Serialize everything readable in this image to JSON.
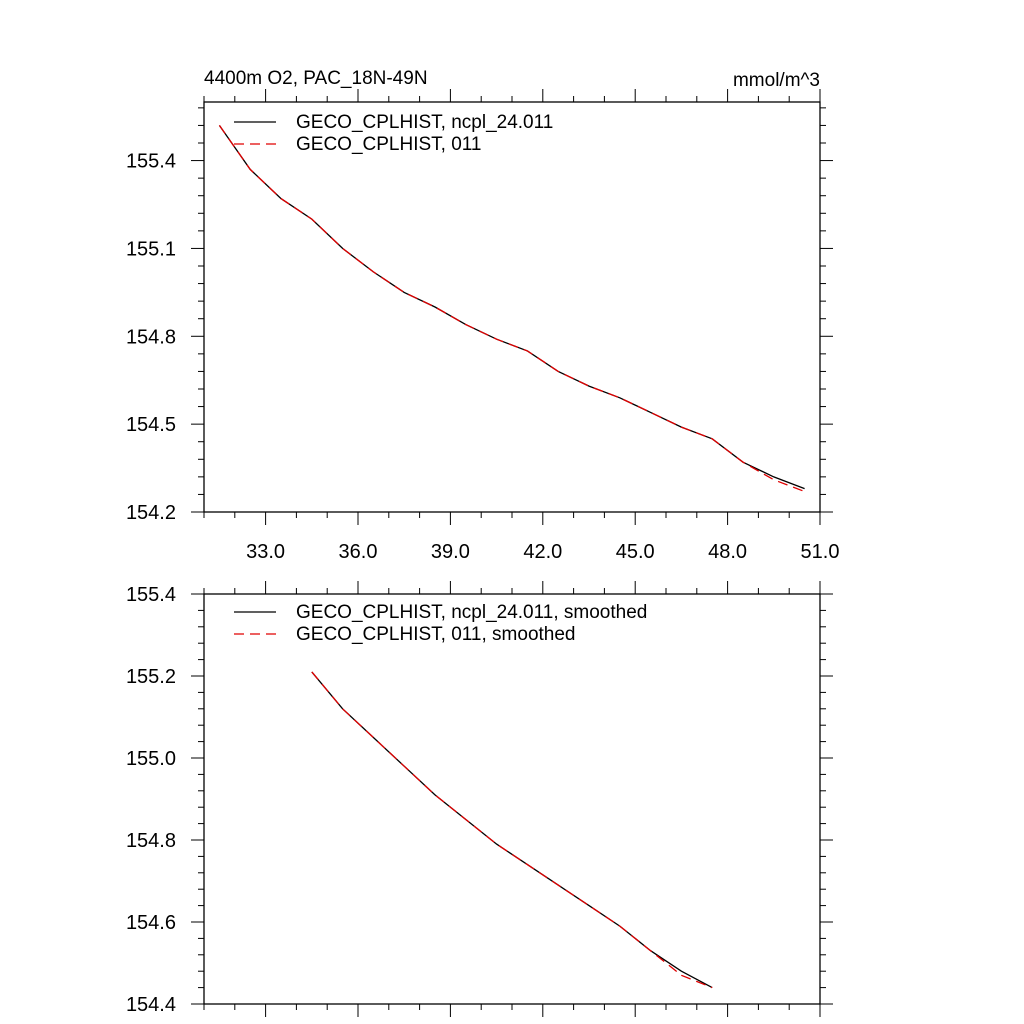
{
  "title_left": "4400m O2, PAC_18N-49N",
  "title_right": "mmol/m^3",
  "colors": {
    "series1": "#000000",
    "series2": "#e00000"
  },
  "chart_data": [
    {
      "type": "line",
      "xlim": [
        31.0,
        51.0
      ],
      "ylim": [
        154.2,
        155.6
      ],
      "xticks": [
        "33.0",
        "36.0",
        "39.0",
        "42.0",
        "45.0",
        "48.0",
        "51.0"
      ],
      "yticks": [
        "154.2",
        "154.5",
        "154.8",
        "155.1",
        "155.4"
      ],
      "series": [
        {
          "name": "GECO_CPLHIST, ncpl_24.011",
          "x": [
            31.5,
            32.5,
            33.5,
            34.5,
            35.5,
            36.5,
            37.5,
            38.5,
            39.5,
            40.5,
            41.5,
            42.5,
            43.5,
            44.5,
            45.5,
            46.5,
            47.5,
            48.5,
            49.5,
            50.5
          ],
          "y": [
            155.52,
            155.37,
            155.27,
            155.2,
            155.1,
            155.02,
            154.95,
            154.9,
            154.84,
            154.79,
            154.75,
            154.68,
            154.63,
            154.59,
            154.54,
            154.49,
            154.45,
            154.37,
            154.32,
            154.28
          ]
        },
        {
          "name": "GECO_CPLHIST, 011",
          "x": [
            31.5,
            32.5,
            33.5,
            34.5,
            35.5,
            36.5,
            37.5,
            38.5,
            39.5,
            40.5,
            41.5,
            42.5,
            43.5,
            44.5,
            45.5,
            46.5,
            47.5,
            48.5,
            49.5,
            50.5
          ],
          "y": [
            155.52,
            155.37,
            155.27,
            155.2,
            155.1,
            155.02,
            154.95,
            154.9,
            154.84,
            154.79,
            154.75,
            154.68,
            154.63,
            154.59,
            154.54,
            154.49,
            154.45,
            154.37,
            154.31,
            154.27
          ]
        }
      ]
    },
    {
      "type": "line",
      "xlim": [
        31.0,
        51.0
      ],
      "ylim": [
        154.4,
        155.4
      ],
      "yticks": [
        "154.4",
        "154.6",
        "154.8",
        "155.0",
        "155.2",
        "155.4"
      ],
      "series": [
        {
          "name": "GECO_CPLHIST, ncpl_24.011, smoothed",
          "x": [
            34.5,
            35.5,
            36.5,
            37.5,
            38.5,
            39.5,
            40.5,
            41.5,
            42.5,
            43.5,
            44.5,
            45.5,
            46.5,
            47.5
          ],
          "y": [
            155.21,
            155.12,
            155.05,
            154.98,
            154.91,
            154.85,
            154.79,
            154.74,
            154.69,
            154.64,
            154.59,
            154.53,
            154.48,
            154.44
          ]
        },
        {
          "name": "GECO_CPLHIST, 011, smoothed",
          "x": [
            34.5,
            35.5,
            36.5,
            37.5,
            38.5,
            39.5,
            40.5,
            41.5,
            42.5,
            43.5,
            44.5,
            45.5,
            46.5,
            47.5
          ],
          "y": [
            155.21,
            155.12,
            155.05,
            154.98,
            154.91,
            154.85,
            154.79,
            154.74,
            154.69,
            154.64,
            154.59,
            154.53,
            154.47,
            154.44
          ]
        }
      ]
    }
  ]
}
